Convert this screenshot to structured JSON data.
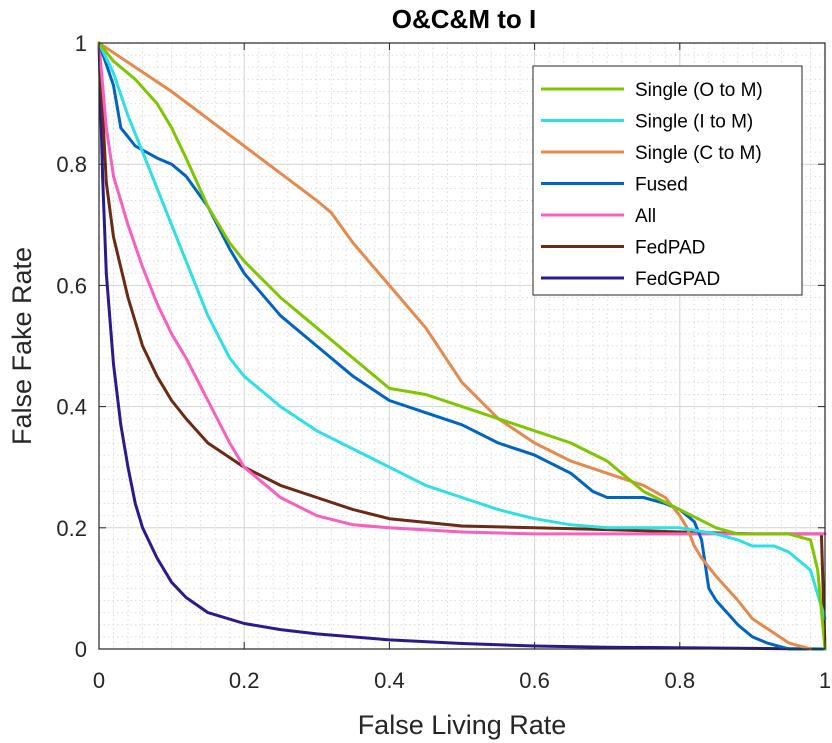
{
  "chart_data": {
    "type": "line",
    "title": "O&C&M to I",
    "xlabel": "False Living Rate",
    "ylabel": "False Fake Rate",
    "xlim": [
      0,
      1
    ],
    "ylim": [
      0,
      1
    ],
    "x_ticks": [
      "0",
      "0.2",
      "0.4",
      "0.6",
      "0.8",
      "1"
    ],
    "y_ticks": [
      "0",
      "0.2",
      "0.4",
      "0.6",
      "0.8",
      "1"
    ],
    "grid": true,
    "legend_position": "top-right",
    "series": [
      {
        "name": "Single (O to M)",
        "color": "#7ec600",
        "x": [
          0,
          0.02,
          0.05,
          0.08,
          0.1,
          0.12,
          0.15,
          0.18,
          0.2,
          0.25,
          0.3,
          0.35,
          0.4,
          0.45,
          0.5,
          0.55,
          0.6,
          0.65,
          0.7,
          0.75,
          0.8,
          0.85,
          0.88,
          0.9,
          0.95,
          0.98,
          0.99,
          1.0
        ],
        "y": [
          1.0,
          0.97,
          0.94,
          0.9,
          0.86,
          0.81,
          0.73,
          0.67,
          0.64,
          0.58,
          0.53,
          0.48,
          0.43,
          0.42,
          0.4,
          0.38,
          0.36,
          0.34,
          0.31,
          0.26,
          0.23,
          0.2,
          0.19,
          0.19,
          0.19,
          0.18,
          0.13,
          0.0
        ]
      },
      {
        "name": "Single (I to M)",
        "color": "#2de0e4",
        "x": [
          0,
          0.02,
          0.04,
          0.06,
          0.08,
          0.1,
          0.12,
          0.15,
          0.18,
          0.2,
          0.25,
          0.3,
          0.35,
          0.4,
          0.45,
          0.5,
          0.55,
          0.6,
          0.65,
          0.7,
          0.75,
          0.8,
          0.85,
          0.88,
          0.9,
          0.93,
          0.95,
          0.98,
          1.0
        ],
        "y": [
          1.0,
          0.95,
          0.88,
          0.82,
          0.76,
          0.7,
          0.64,
          0.55,
          0.48,
          0.45,
          0.4,
          0.36,
          0.33,
          0.3,
          0.27,
          0.25,
          0.23,
          0.215,
          0.205,
          0.2,
          0.2,
          0.2,
          0.19,
          0.18,
          0.17,
          0.17,
          0.16,
          0.13,
          0.05
        ]
      },
      {
        "name": "Single (C to M)",
        "color": "#e58a4d",
        "x": [
          0,
          0.1,
          0.2,
          0.3,
          0.32,
          0.35,
          0.4,
          0.45,
          0.5,
          0.55,
          0.6,
          0.65,
          0.7,
          0.75,
          0.78,
          0.8,
          0.81,
          0.82,
          0.83,
          0.85,
          0.88,
          0.9,
          0.95,
          0.98
        ],
        "y": [
          1.0,
          0.92,
          0.83,
          0.74,
          0.72,
          0.67,
          0.6,
          0.53,
          0.44,
          0.38,
          0.34,
          0.31,
          0.29,
          0.27,
          0.25,
          0.22,
          0.2,
          0.17,
          0.15,
          0.12,
          0.08,
          0.05,
          0.01,
          0.0
        ]
      },
      {
        "name": "Fused",
        "color": "#0064c3",
        "x": [
          0,
          0.02,
          0.03,
          0.05,
          0.08,
          0.1,
          0.12,
          0.15,
          0.18,
          0.2,
          0.25,
          0.3,
          0.35,
          0.4,
          0.45,
          0.5,
          0.55,
          0.6,
          0.65,
          0.68,
          0.7,
          0.75,
          0.78,
          0.8,
          0.82,
          0.83,
          0.84,
          0.85,
          0.88,
          0.9,
          0.92,
          0.95,
          1.0
        ],
        "y": [
          1.0,
          0.93,
          0.86,
          0.83,
          0.81,
          0.8,
          0.78,
          0.73,
          0.66,
          0.62,
          0.55,
          0.5,
          0.45,
          0.41,
          0.39,
          0.37,
          0.34,
          0.32,
          0.29,
          0.26,
          0.25,
          0.25,
          0.24,
          0.23,
          0.21,
          0.18,
          0.1,
          0.08,
          0.04,
          0.02,
          0.01,
          0.0,
          0.0
        ]
      },
      {
        "name": "All",
        "color": "#f85fbf",
        "x": [
          0,
          0.01,
          0.02,
          0.04,
          0.06,
          0.08,
          0.1,
          0.12,
          0.15,
          0.18,
          0.2,
          0.25,
          0.3,
          0.35,
          0.4,
          0.5,
          0.6,
          0.7,
          0.8,
          0.9,
          1.0
        ],
        "y": [
          1.0,
          0.86,
          0.78,
          0.7,
          0.63,
          0.57,
          0.52,
          0.48,
          0.41,
          0.34,
          0.3,
          0.25,
          0.22,
          0.205,
          0.2,
          0.193,
          0.19,
          0.19,
          0.19,
          0.19,
          0.19
        ]
      },
      {
        "name": "FedPAD",
        "color": "#6b2a13",
        "x": [
          0,
          0.01,
          0.02,
          0.04,
          0.06,
          0.08,
          0.1,
          0.12,
          0.15,
          0.2,
          0.25,
          0.3,
          0.35,
          0.4,
          0.5,
          0.6,
          0.7,
          0.8,
          0.9,
          0.995,
          1.0
        ],
        "y": [
          1.0,
          0.77,
          0.68,
          0.58,
          0.5,
          0.45,
          0.41,
          0.38,
          0.34,
          0.3,
          0.27,
          0.25,
          0.23,
          0.215,
          0.203,
          0.2,
          0.197,
          0.193,
          0.19,
          0.19,
          0.0
        ]
      },
      {
        "name": "FedGPAD",
        "color": "#2a1b8c",
        "x": [
          0,
          0.005,
          0.01,
          0.02,
          0.03,
          0.04,
          0.05,
          0.06,
          0.08,
          0.1,
          0.12,
          0.15,
          0.2,
          0.25,
          0.3,
          0.4,
          0.5,
          0.6,
          0.7,
          0.8,
          0.9,
          1.0
        ],
        "y": [
          1.0,
          0.78,
          0.62,
          0.47,
          0.37,
          0.3,
          0.24,
          0.2,
          0.15,
          0.11,
          0.085,
          0.06,
          0.042,
          0.032,
          0.025,
          0.015,
          0.009,
          0.005,
          0.003,
          0.002,
          0.001,
          0.0
        ]
      }
    ]
  }
}
